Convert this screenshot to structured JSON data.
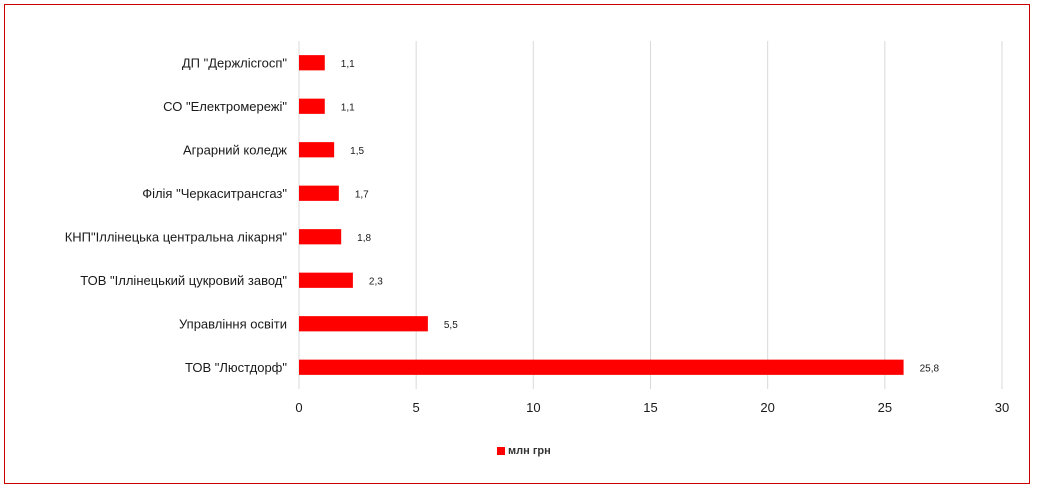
{
  "chart_data": {
    "type": "bar",
    "orientation": "horizontal",
    "categories": [
      "ДП \"Держлісгосп\"",
      "СО \"Електромережі\"",
      "Аграрний коледж",
      "Філія \"Черкаситрансгаз\"",
      "КНП\"Іллінецька центральна лікарня\"",
      "ТОВ \"Іллінецький цукровий завод\"",
      "Управління освіти",
      "ТОВ \"Люстдорф\""
    ],
    "value_labels": [
      "1,1",
      "1,1",
      "1,5",
      "1,7",
      "1,8",
      "2,3",
      "5,5",
      "25,8"
    ],
    "series": [
      {
        "name": "млн грн",
        "values": [
          1.1,
          1.1,
          1.5,
          1.7,
          1.8,
          2.3,
          5.5,
          25.8
        ],
        "color": "#ff0000"
      }
    ],
    "xlim": [
      0,
      30
    ],
    "xticks": [
      "0",
      "5",
      "10",
      "15",
      "20",
      "25",
      "30"
    ],
    "grid": "vertical",
    "legend_position": "bottom"
  },
  "colors": {
    "bar": "#ff0000",
    "frame": "#cc0000",
    "grid": "#d9d9d9"
  }
}
